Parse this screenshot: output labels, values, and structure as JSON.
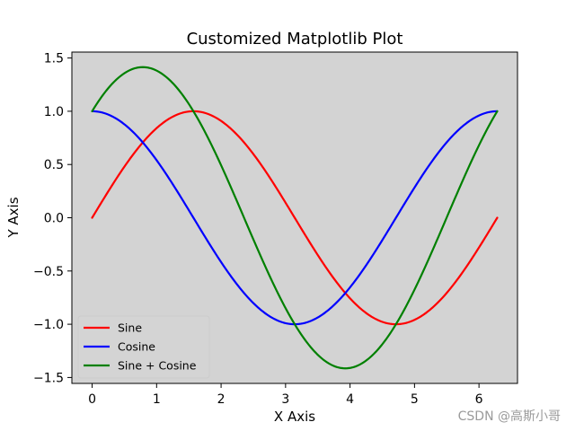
{
  "chart_data": {
    "type": "line",
    "title": "Customized Matplotlib Plot",
    "xlabel": "X Axis",
    "ylabel": "Y Axis",
    "xlim": [
      -0.3142,
      6.5973
    ],
    "ylim": [
      -1.5556,
      1.5556
    ],
    "xticks": [
      0,
      1,
      2,
      3,
      4,
      5,
      6
    ],
    "yticks": [
      -1.5,
      -1.0,
      -0.5,
      0.0,
      0.5,
      1.0,
      1.5
    ],
    "ytick_labels": [
      "−1.5",
      "−1.0",
      "−0.5",
      "0.0",
      "0.5",
      "1.0",
      "1.5"
    ],
    "background": "#d3d3d3",
    "grid": false,
    "legend_position": "lower-left",
    "x_range": [
      0,
      6.2832
    ],
    "series": [
      {
        "name": "Sine",
        "color": "#ff0000",
        "function": "sin"
      },
      {
        "name": "Cosine",
        "color": "#0000ff",
        "function": "cos"
      },
      {
        "name": "Sine + Cosine",
        "color": "#008000",
        "function": "sin+cos"
      }
    ]
  },
  "watermark": "CSDN @高斯小哥"
}
